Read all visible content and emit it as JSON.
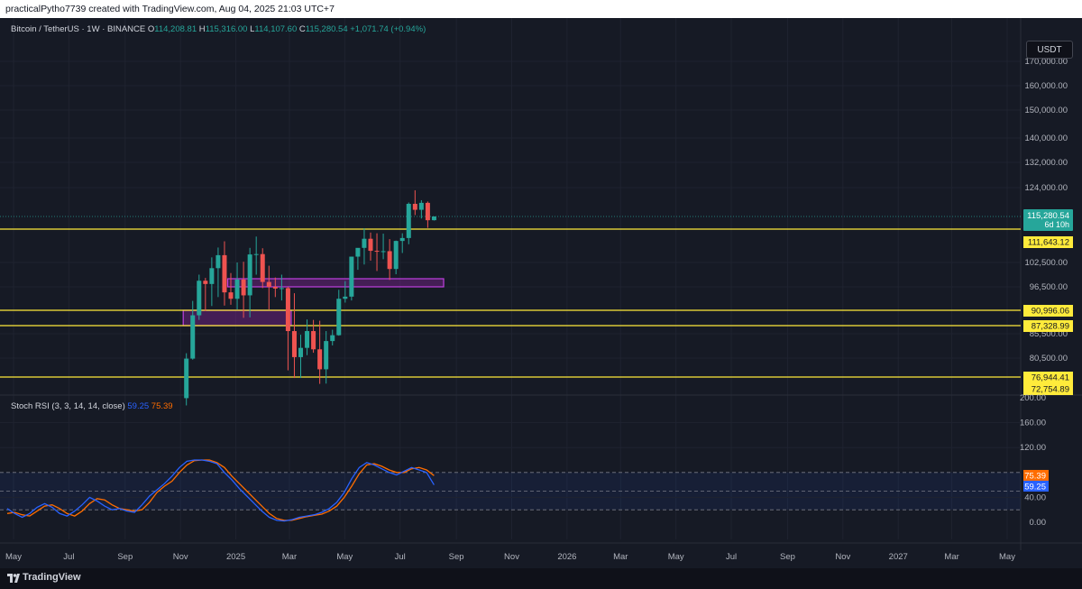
{
  "header": {
    "attribution": "practicalPytho7739 created with TradingView.com, Aug 04, 2025 21:03 UTC+7"
  },
  "legend": {
    "symbol": "Bitcoin / TetherUS · 1W · BINANCE",
    "o_label": "O",
    "o_value": "114,208.81",
    "h_label": "H",
    "h_value": "115,316.00",
    "l_label": "L",
    "l_value": "114,107.60",
    "c_label": "C",
    "c_value": "115,280.54",
    "change": "+1,071.74 (+0.94%)"
  },
  "currency_button": "USDT",
  "price_axis": {
    "ticks": [
      "170,000.00",
      "160,000.00",
      "150,000.00",
      "140,000.00",
      "132,000.00",
      "124,000.00",
      "102,500.00",
      "96,500.00",
      "85,500.00",
      "80,500.00"
    ],
    "last_price": "115,280.54",
    "countdown": "6d 10h",
    "levels": [
      "111,643.12",
      "90,996.06",
      "87,328.99",
      "76,944.41",
      "72,754.89"
    ]
  },
  "rsi": {
    "title": "Stoch RSI (3, 3, 14, 14, close)",
    "k_value": "59.25",
    "d_value": "75.39",
    "ticks": [
      "200.00",
      "160.00",
      "120.00",
      "40.00",
      "0.00"
    ]
  },
  "time_axis": {
    "ticks": [
      "May",
      "Jul",
      "Sep",
      "Nov",
      "2025",
      "Mar",
      "May",
      "Jul",
      "Sep",
      "Nov",
      "2026",
      "Mar",
      "May",
      "Jul",
      "Sep",
      "Nov",
      "2027",
      "Mar",
      "May"
    ]
  },
  "footer": {
    "brand": "TradingView"
  },
  "colors": {
    "up": "#26a69a",
    "down": "#ef5350",
    "level": "#ffeb3b",
    "zone": "#9c27b0",
    "k_line": "#2962ff",
    "d_line": "#ff6d00"
  },
  "chart_data": {
    "type": "candlestick",
    "timeframe": "1W",
    "ylim": [
      72000,
      176000
    ],
    "weekly_candles": [
      {
        "date": "2024-11-04",
        "o": 69400,
        "h": 81500,
        "l": 66800,
        "c": 80400
      },
      {
        "date": "2024-11-11",
        "o": 80400,
        "h": 93200,
        "l": 80200,
        "c": 89800
      },
      {
        "date": "2024-11-18",
        "o": 89800,
        "h": 99500,
        "l": 88700,
        "c": 98000
      },
      {
        "date": "2024-11-25",
        "o": 98000,
        "h": 98700,
        "l": 90800,
        "c": 97200
      },
      {
        "date": "2024-12-02",
        "o": 97200,
        "h": 103900,
        "l": 92000,
        "c": 101100
      },
      {
        "date": "2024-12-09",
        "o": 101100,
        "h": 106600,
        "l": 94100,
        "c": 104500
      },
      {
        "date": "2024-12-16",
        "o": 104500,
        "h": 108300,
        "l": 92100,
        "c": 95200
      },
      {
        "date": "2024-12-23",
        "o": 95200,
        "h": 99900,
        "l": 92300,
        "c": 93700
      },
      {
        "date": "2024-12-30",
        "o": 93700,
        "h": 102500,
        "l": 91200,
        "c": 98300
      },
      {
        "date": "2025-01-06",
        "o": 98300,
        "h": 102700,
        "l": 89200,
        "c": 94500
      },
      {
        "date": "2025-01-13",
        "o": 94500,
        "h": 106500,
        "l": 89300,
        "c": 104700
      },
      {
        "date": "2025-01-20",
        "o": 104700,
        "h": 109600,
        "l": 99500,
        "c": 104800
      },
      {
        "date": "2025-01-27",
        "o": 104800,
        "h": 106400,
        "l": 96200,
        "c": 97700
      },
      {
        "date": "2025-02-03",
        "o": 97700,
        "h": 101700,
        "l": 91200,
        "c": 96500
      },
      {
        "date": "2025-02-10",
        "o": 96500,
        "h": 98800,
        "l": 94100,
        "c": 96100
      },
      {
        "date": "2025-02-17",
        "o": 96100,
        "h": 99500,
        "l": 93300,
        "c": 96200
      },
      {
        "date": "2025-02-24",
        "o": 96200,
        "h": 96500,
        "l": 78200,
        "c": 86100
      },
      {
        "date": "2025-03-03",
        "o": 86100,
        "h": 95000,
        "l": 76600,
        "c": 80700
      },
      {
        "date": "2025-03-10",
        "o": 80700,
        "h": 85300,
        "l": 76600,
        "c": 82600
      },
      {
        "date": "2025-03-17",
        "o": 82600,
        "h": 88800,
        "l": 81100,
        "c": 86100
      },
      {
        "date": "2025-03-24",
        "o": 86100,
        "h": 88700,
        "l": 81600,
        "c": 82300
      },
      {
        "date": "2025-03-31",
        "o": 82300,
        "h": 88500,
        "l": 74500,
        "c": 78400
      },
      {
        "date": "2025-04-07",
        "o": 78400,
        "h": 86100,
        "l": 74600,
        "c": 84000
      },
      {
        "date": "2025-04-14",
        "o": 84000,
        "h": 86400,
        "l": 83100,
        "c": 85200
      },
      {
        "date": "2025-04-21",
        "o": 85200,
        "h": 95800,
        "l": 85100,
        "c": 93700
      },
      {
        "date": "2025-04-28",
        "o": 93700,
        "h": 97900,
        "l": 92800,
        "c": 94200
      },
      {
        "date": "2025-05-05",
        "o": 94200,
        "h": 104100,
        "l": 93300,
        "c": 104100
      },
      {
        "date": "2025-05-12",
        "o": 104100,
        "h": 105800,
        "l": 100700,
        "c": 106500
      },
      {
        "date": "2025-05-19",
        "o": 106500,
        "h": 111900,
        "l": 102000,
        "c": 109000
      },
      {
        "date": "2025-05-26",
        "o": 109000,
        "h": 110700,
        "l": 103000,
        "c": 105700
      },
      {
        "date": "2025-06-02",
        "o": 105700,
        "h": 110500,
        "l": 100400,
        "c": 105600
      },
      {
        "date": "2025-06-09",
        "o": 105600,
        "h": 110400,
        "l": 103400,
        "c": 105600
      },
      {
        "date": "2025-06-16",
        "o": 105600,
        "h": 108900,
        "l": 98200,
        "c": 100900
      },
      {
        "date": "2025-06-23",
        "o": 100900,
        "h": 108500,
        "l": 99600,
        "c": 108400
      },
      {
        "date": "2025-06-30",
        "o": 108400,
        "h": 110500,
        "l": 105100,
        "c": 109200
      },
      {
        "date": "2025-07-07",
        "o": 109200,
        "h": 119500,
        "l": 107500,
        "c": 119100
      },
      {
        "date": "2025-07-14",
        "o": 119100,
        "h": 123200,
        "l": 115700,
        "c": 117300
      },
      {
        "date": "2025-07-21",
        "o": 117300,
        "h": 120200,
        "l": 114700,
        "c": 119400
      },
      {
        "date": "2025-07-28",
        "o": 119400,
        "h": 119800,
        "l": 112000,
        "c": 114200
      },
      {
        "date": "2025-08-04",
        "o": 114208.81,
        "h": 115316.0,
        "l": 114107.6,
        "c": 115280.54
      }
    ],
    "horizontal_levels": [
      111643.12,
      90996.06,
      87328.99,
      76944.41,
      72754.89
    ],
    "zones": [
      {
        "from": "2024-11-04",
        "to": "2025-03-03",
        "low": 87328.99,
        "high": 90996.06
      },
      {
        "from": "2024-12-23",
        "to": "2025-08-18",
        "low": 96500,
        "high": 98500
      }
    ],
    "stoch_rsi": {
      "ylim": [
        0,
        200
      ],
      "bands": [
        20,
        50,
        80
      ],
      "k": [
        22,
        14,
        8,
        14,
        24,
        30,
        24,
        14,
        10,
        18,
        28,
        40,
        34,
        26,
        20,
        22,
        18,
        16,
        28,
        42,
        52,
        62,
        74,
        88,
        98,
        100,
        100,
        98,
        94,
        80,
        68,
        54,
        42,
        30,
        18,
        8,
        3,
        2,
        4,
        8,
        10,
        12,
        16,
        22,
        32,
        48,
        70,
        88,
        96,
        92,
        86,
        80,
        76,
        82,
        88,
        84,
        80,
        60
      ],
      "d": [
        14,
        16,
        12,
        10,
        18,
        26,
        28,
        22,
        14,
        10,
        18,
        30,
        38,
        36,
        28,
        22,
        20,
        18,
        20,
        32,
        48,
        58,
        66,
        80,
        92,
        99,
        100,
        100,
        96,
        88,
        74,
        62,
        50,
        38,
        26,
        14,
        6,
        3,
        3,
        6,
        9,
        11,
        13,
        18,
        26,
        40,
        58,
        78,
        92,
        94,
        90,
        84,
        80,
        80,
        86,
        88,
        84,
        75
      ]
    }
  }
}
